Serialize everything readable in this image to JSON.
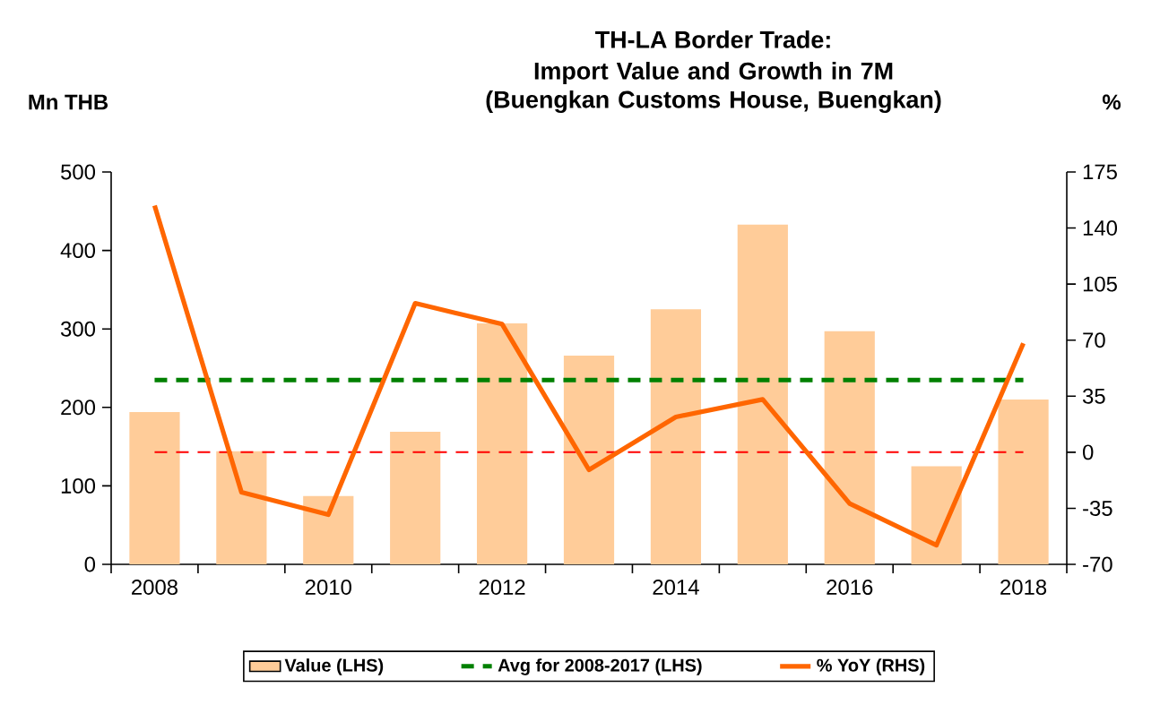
{
  "chart_data": {
    "type": "bar",
    "title": "TH-LA Border Trade:",
    "subtitle": "Import Value and Growth in 7M (Buengkan Customs House, Buengkan)",
    "ylabel": "Mn THB",
    "y2label": "%",
    "categories": [
      "2008",
      null,
      "2010",
      null,
      "2012",
      null,
      "2014",
      null,
      "2016",
      null,
      "2018"
    ],
    "series": [
      {
        "name": "Value (LHS)",
        "color": "#ffcc99",
        "values": [
          194,
          144,
          87,
          169,
          307,
          266,
          325,
          433,
          297,
          125,
          210
        ]
      },
      {
        "name": "% YoY (RHS)",
        "type": "line",
        "axis": "y2",
        "color": "#ff6600",
        "values": [
          154,
          -25,
          -39,
          93,
          80,
          -11,
          22,
          33,
          -32,
          -58,
          68
        ]
      }
    ],
    "ylim": [
      0,
      500
    ],
    "yticks": [
      0,
      100,
      200,
      300,
      400,
      500
    ],
    "y2lim": [
      -70,
      175
    ],
    "y2ticks": [
      -70,
      -35,
      0,
      35,
      70,
      105,
      140,
      175
    ],
    "ref_lines": [
      {
        "axis": "y",
        "value": 235,
        "label": "Avg for 2008-2017 (LHS)",
        "color": "#008000",
        "line_style": "dashed"
      },
      {
        "axis": "y2",
        "value": 0,
        "color": "#ff0000",
        "line_style": "dashed"
      }
    ],
    "legend": "bottom"
  }
}
